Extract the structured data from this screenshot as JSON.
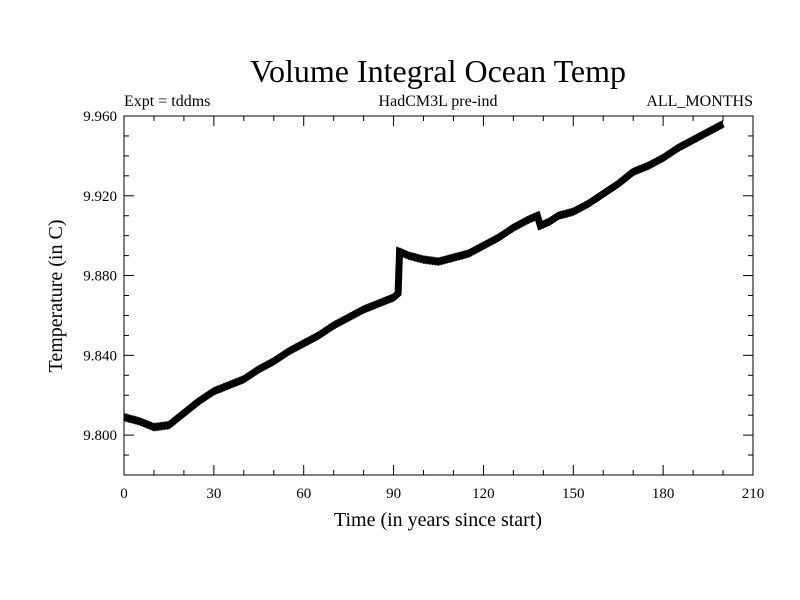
{
  "chart_data": {
    "type": "line",
    "title": "Volume Integral Ocean Temp",
    "subtitle_left": "Expt = tddms",
    "subtitle_center": "HadCM3L pre-ind",
    "subtitle_right": "ALL_MONTHS",
    "xlabel": "Time (in years since start)",
    "ylabel": "Temperature (in C)",
    "xlim": [
      0,
      210
    ],
    "ylim": [
      9.78,
      9.96
    ],
    "xticks": [
      0,
      30,
      60,
      90,
      120,
      150,
      180,
      210
    ],
    "xtick_labels": [
      "0",
      "30",
      "60",
      "90",
      "120",
      "150",
      "180",
      "210"
    ],
    "yticks": [
      9.8,
      9.84,
      9.88,
      9.92,
      9.96
    ],
    "ytick_labels": [
      "9.800",
      "9.840",
      "9.880",
      "9.920",
      "9.960"
    ],
    "grid": false,
    "legend": "none",
    "line_color": "#000000",
    "series": [
      {
        "x": [
          0,
          5,
          10,
          15,
          20,
          25,
          30,
          35,
          40,
          45,
          50,
          55,
          60,
          65,
          70,
          75,
          80,
          85,
          90,
          91.5,
          92,
          95,
          100,
          105,
          110,
          115,
          120,
          125,
          130,
          135,
          138,
          139,
          142,
          145,
          150,
          155,
          160,
          165,
          170,
          175,
          180,
          185,
          190,
          195,
          200
        ],
        "y": [
          9.809,
          9.807,
          9.804,
          9.805,
          9.811,
          9.817,
          9.822,
          9.825,
          9.828,
          9.833,
          9.837,
          9.842,
          9.846,
          9.85,
          9.855,
          9.859,
          9.863,
          9.866,
          9.869,
          9.871,
          9.892,
          9.89,
          9.888,
          9.887,
          9.889,
          9.891,
          9.895,
          9.899,
          9.904,
          9.908,
          9.91,
          9.905,
          9.907,
          9.91,
          9.912,
          9.916,
          9.921,
          9.926,
          9.932,
          9.935,
          9.939,
          9.944,
          9.948,
          9.952,
          9.956
        ]
      }
    ]
  }
}
